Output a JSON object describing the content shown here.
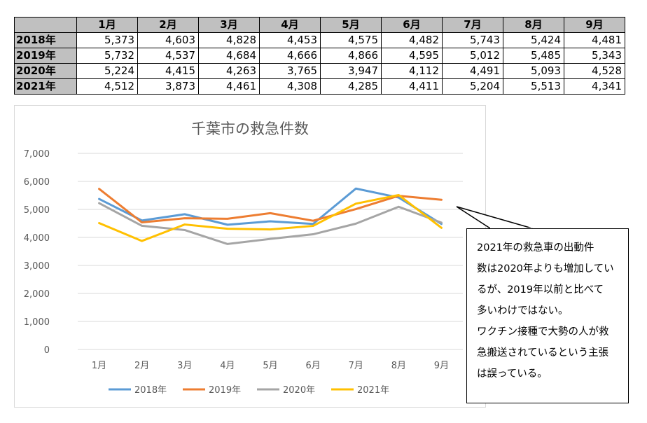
{
  "table": {
    "corner": "",
    "months": [
      "1月",
      "2月",
      "3月",
      "4月",
      "5月",
      "6月",
      "7月",
      "8月",
      "9月"
    ],
    "rows": [
      {
        "year": "2018年",
        "values": [
          "5,373",
          "4,603",
          "4,828",
          "4,453",
          "4,575",
          "4,482",
          "5,743",
          "5,424",
          "4,481"
        ]
      },
      {
        "year": "2019年",
        "values": [
          "5,732",
          "4,537",
          "4,684",
          "4,666",
          "4,866",
          "4,595",
          "5,012",
          "5,485",
          "5,343"
        ]
      },
      {
        "year": "2020年",
        "values": [
          "5,224",
          "4,415",
          "4,263",
          "3,765",
          "3,947",
          "4,112",
          "4,491",
          "5,093",
          "4,528"
        ]
      },
      {
        "year": "2021年",
        "values": [
          "4,512",
          "3,873",
          "4,461",
          "4,308",
          "4,285",
          "4,411",
          "5,204",
          "5,513",
          "4,341"
        ]
      }
    ]
  },
  "chart_data": {
    "type": "line",
    "title": "千葉市の救急件数",
    "categories": [
      "1月",
      "2月",
      "3月",
      "4月",
      "5月",
      "6月",
      "7月",
      "8月",
      "9月"
    ],
    "ylim": [
      0,
      7000
    ],
    "yticks": [
      "0",
      "1,000",
      "2,000",
      "3,000",
      "4,000",
      "5,000",
      "6,000",
      "7,000"
    ],
    "grid": true,
    "legend": "bottom",
    "series": [
      {
        "name": "2018年",
        "color": "#5b9bd5",
        "values": [
          5373,
          4603,
          4828,
          4453,
          4575,
          4482,
          5743,
          5424,
          4481
        ]
      },
      {
        "name": "2019年",
        "color": "#ed7d31",
        "values": [
          5732,
          4537,
          4684,
          4666,
          4866,
          4595,
          5012,
          5485,
          5343
        ]
      },
      {
        "name": "2020年",
        "color": "#a5a5a5",
        "values": [
          5224,
          4415,
          4263,
          3765,
          3947,
          4112,
          4491,
          5093,
          4528
        ]
      },
      {
        "name": "2021年",
        "color": "#ffc000",
        "values": [
          4512,
          3873,
          4461,
          4308,
          4285,
          4411,
          5204,
          5513,
          4341
        ]
      }
    ]
  },
  "callout": {
    "lines": [
      "2021年の救急車の出動件",
      "数は2020年よりも増加してい",
      "るが、2019年以前と比べて",
      "多いわけではない。",
      "ワクチン接種で大勢の人が救",
      "急搬送されているという主張",
      "は誤っている。"
    ]
  }
}
